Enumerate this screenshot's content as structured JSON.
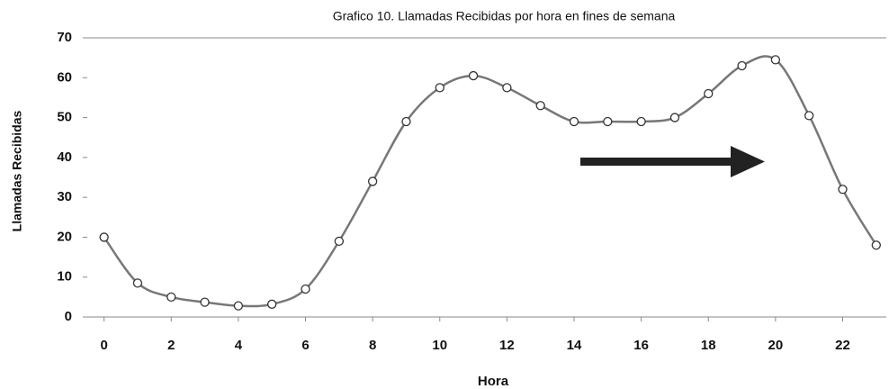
{
  "chart_data": {
    "type": "line",
    "title": "Grafico 10. Llamadas Recibidas por hora en fines de semana",
    "x_label": "Hora",
    "y_label": "Llamadas Recibidas",
    "x": [
      0,
      1,
      2,
      3,
      4,
      5,
      6,
      7,
      8,
      9,
      10,
      11,
      12,
      13,
      14,
      15,
      16,
      17,
      18,
      19,
      20,
      21,
      22,
      23
    ],
    "series": [
      {
        "name": "Llamadas Recibidas",
        "color": "#777777",
        "values": [
          20,
          8.5,
          5,
          3.7,
          2.8,
          3.2,
          7,
          19,
          34,
          49,
          57.5,
          60.5,
          57.5,
          53,
          49,
          49,
          49,
          50,
          56,
          63,
          64.5,
          50.5,
          32,
          18
        ]
      }
    ],
    "xlim": [
      -0.5,
      23.3
    ],
    "xticks": [
      0,
      2,
      4,
      6,
      8,
      10,
      12,
      14,
      16,
      18,
      20,
      22
    ],
    "ylim": [
      0,
      70
    ],
    "yticks": [
      0,
      10,
      20,
      30,
      40,
      50,
      60,
      70
    ],
    "grid": false
  }
}
